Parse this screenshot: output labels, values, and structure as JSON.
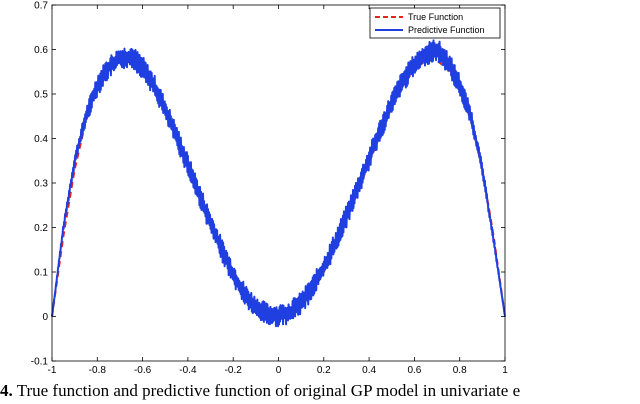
{
  "chart_data": {
    "type": "line",
    "xlim": [
      -1,
      1
    ],
    "ylim": [
      -0.1,
      0.7
    ],
    "x_ticks": [
      -1,
      -0.8,
      -0.6,
      -0.4,
      -0.2,
      0,
      0.2,
      0.4,
      0.6,
      0.8,
      1
    ],
    "x_tick_labels": [
      "-1",
      "-0.8",
      "-0.6",
      "-0.4",
      "-0.2",
      "0",
      "0.2",
      "0.4",
      "0.6",
      "0.8",
      "1"
    ],
    "y_ticks": [
      -0.1,
      0,
      0.1,
      0.2,
      0.3,
      0.4,
      0.5,
      0.6,
      0.7
    ],
    "y_tick_labels": [
      "-0.1",
      "0",
      "0.1",
      "0.2",
      "0.3",
      "0.4",
      "0.5",
      "0.6",
      "0.7"
    ],
    "grid": false,
    "legend_position": "top-right",
    "series": [
      {
        "name": "True Function",
        "color": "#e8231c",
        "style": "dashed",
        "x": [
          -1,
          -0.95,
          -0.9,
          -0.85,
          -0.8,
          -0.75,
          -0.7,
          -0.65,
          -0.6,
          -0.55,
          -0.5,
          -0.45,
          -0.4,
          -0.35,
          -0.3,
          -0.25,
          -0.2,
          -0.15,
          -0.1,
          -0.05,
          0,
          0.05,
          0.1,
          0.15,
          0.2,
          0.25,
          0.3,
          0.35,
          0.4,
          0.45,
          0.5,
          0.55,
          0.6,
          0.65,
          0.7,
          0.75,
          0.8,
          0.85,
          0.9,
          0.95,
          1
        ],
        "y": [
          0,
          0.18,
          0.33,
          0.44,
          0.51,
          0.555,
          0.575,
          0.575,
          0.555,
          0.52,
          0.47,
          0.41,
          0.345,
          0.28,
          0.215,
          0.155,
          0.1,
          0.055,
          0.022,
          0.005,
          0,
          0.005,
          0.022,
          0.055,
          0.1,
          0.155,
          0.215,
          0.28,
          0.345,
          0.41,
          0.47,
          0.52,
          0.555,
          0.575,
          0.575,
          0.555,
          0.51,
          0.44,
          0.33,
          0.18,
          0
        ]
      },
      {
        "name": "Predictive Function",
        "color": "#1f3fe0",
        "style": "solid",
        "noise_amplitude": 0.025,
        "x": [
          -1,
          -0.95,
          -0.9,
          -0.85,
          -0.8,
          -0.75,
          -0.7,
          -0.65,
          -0.6,
          -0.55,
          -0.5,
          -0.45,
          -0.4,
          -0.35,
          -0.3,
          -0.25,
          -0.2,
          -0.15,
          -0.1,
          -0.05,
          0,
          0.05,
          0.1,
          0.15,
          0.2,
          0.25,
          0.3,
          0.35,
          0.4,
          0.45,
          0.5,
          0.55,
          0.6,
          0.65,
          0.7,
          0.75,
          0.8,
          0.85,
          0.9,
          0.95,
          1
        ],
        "y": [
          0,
          0.2,
          0.35,
          0.45,
          0.52,
          0.56,
          0.58,
          0.585,
          0.56,
          0.52,
          0.465,
          0.405,
          0.34,
          0.275,
          0.21,
          0.15,
          0.095,
          0.05,
          0.02,
          0.005,
          0.002,
          0.01,
          0.03,
          0.065,
          0.11,
          0.165,
          0.225,
          0.29,
          0.355,
          0.42,
          0.48,
          0.53,
          0.565,
          0.59,
          0.6,
          0.57,
          0.52,
          0.45,
          0.33,
          0.17,
          0
        ]
      }
    ]
  },
  "caption": {
    "number": "4.",
    "text": " True function and predictive function of original GP model in univariate e"
  }
}
